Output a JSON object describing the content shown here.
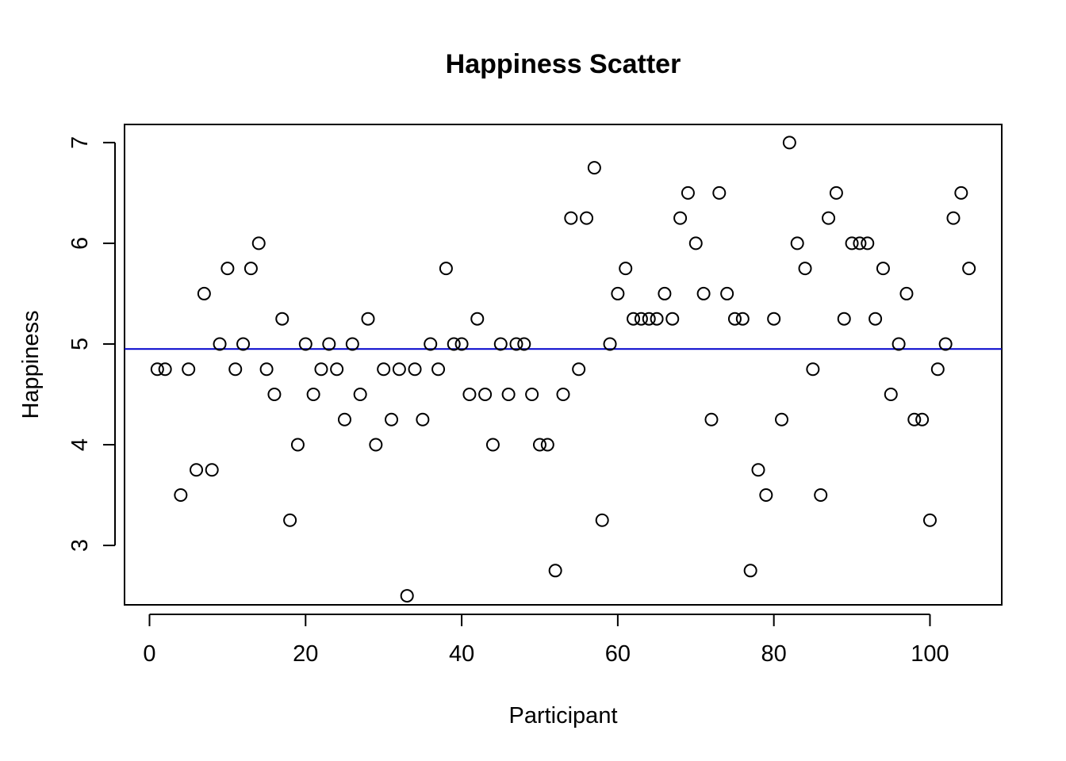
{
  "chart_data": {
    "type": "scatter",
    "title": "Happiness Scatter",
    "xlabel": "Participant",
    "ylabel": "Happiness",
    "xlim": [
      -3.2,
      109.2
    ],
    "ylim": [
      2.41,
      7.18
    ],
    "x_ticks": [
      0,
      20,
      40,
      60,
      80,
      100
    ],
    "y_ticks": [
      3,
      4,
      5,
      6,
      7
    ],
    "grid": false,
    "marker": "open-circle",
    "reference_line": {
      "orientation": "horizontal",
      "y": 4.95,
      "color": "#0000cc"
    },
    "x": [
      1,
      2,
      4,
      5,
      6,
      7,
      8,
      9,
      10,
      11,
      12,
      13,
      14,
      15,
      16,
      17,
      18,
      19,
      20,
      21,
      22,
      23,
      24,
      25,
      26,
      27,
      28,
      29,
      30,
      31,
      32,
      33,
      34,
      35,
      36,
      37,
      38,
      39,
      40,
      41,
      42,
      43,
      44,
      45,
      46,
      47,
      48,
      49,
      50,
      51,
      52,
      53,
      54,
      55,
      56,
      57,
      58,
      59,
      60,
      61,
      62,
      63,
      64,
      65,
      66,
      67,
      68,
      69,
      70,
      71,
      72,
      73,
      74,
      75,
      76,
      77,
      78,
      79,
      80,
      81,
      82,
      83,
      84,
      85,
      86,
      87,
      88,
      89,
      90,
      91,
      92,
      93,
      94,
      95,
      96,
      97,
      98,
      99,
      100,
      101,
      102,
      103,
      104,
      105
    ],
    "y": [
      4.75,
      4.75,
      3.5,
      4.75,
      3.75,
      5.5,
      3.75,
      5.0,
      5.75,
      4.75,
      5.0,
      5.75,
      6.0,
      4.75,
      4.5,
      5.25,
      3.25,
      4.0,
      5.0,
      4.5,
      4.75,
      5.0,
      4.75,
      4.25,
      5.0,
      4.5,
      5.25,
      4.0,
      4.75,
      4.25,
      4.75,
      2.5,
      4.75,
      4.25,
      5.0,
      4.75,
      5.75,
      5.0,
      5.0,
      4.5,
      5.25,
      4.5,
      4.0,
      5.0,
      4.5,
      5.0,
      5.0,
      4.5,
      4.0,
      4.0,
      2.75,
      4.5,
      6.25,
      4.75,
      6.25,
      6.75,
      3.25,
      5.0,
      5.5,
      5.75,
      5.25,
      5.25,
      5.25,
      5.25,
      5.5,
      5.25,
      6.25,
      6.5,
      6.0,
      5.5,
      4.25,
      6.5,
      5.5,
      5.25,
      5.25,
      2.75,
      3.75,
      3.5,
      5.25,
      4.25,
      7.0,
      6.0,
      5.75,
      4.75,
      3.5,
      6.25,
      6.5,
      5.25,
      6.0,
      6.0,
      6.0,
      5.25,
      5.75,
      4.5,
      5.0,
      5.5,
      4.25,
      4.25,
      3.25,
      4.75,
      5.0,
      6.25,
      6.5,
      5.75
    ]
  }
}
